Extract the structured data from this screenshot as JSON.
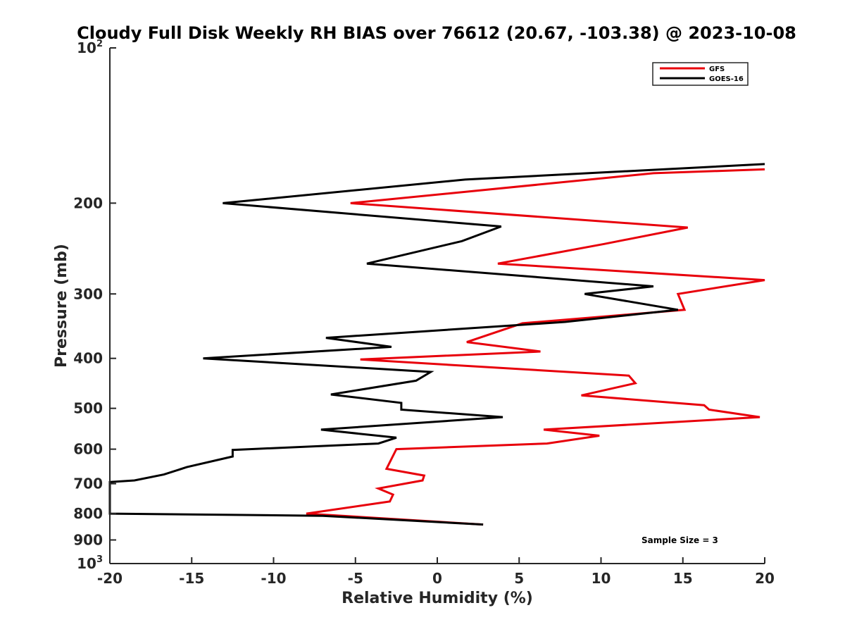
{
  "chart_data": {
    "type": "line",
    "title": "Cloudy Full Disk Weekly RH BIAS over 76612 (20.67, -103.38) @ 2023-10-08",
    "xlabel": "Relative Humidity (%)",
    "ylabel": "Pressure (mb)",
    "xlim": [
      -20,
      20
    ],
    "ylim": [
      100,
      1000
    ],
    "yscale": "log",
    "y_reversed": true,
    "xticks": [
      -20,
      -15,
      -10,
      -5,
      0,
      5,
      10,
      15,
      20
    ],
    "xtick_labels": [
      "-20",
      "-15",
      "-10",
      "-5",
      "0",
      "5",
      "10",
      "15",
      "20"
    ],
    "yticks": [
      {
        "value": 100,
        "base": "10",
        "exp": "2"
      },
      {
        "value": 200,
        "label": "200"
      },
      {
        "value": 300,
        "label": "300"
      },
      {
        "value": 400,
        "label": "400"
      },
      {
        "value": 500,
        "label": "500"
      },
      {
        "value": 600,
        "label": "600"
      },
      {
        "value": 700,
        "label": "700"
      },
      {
        "value": 800,
        "label": "800"
      },
      {
        "value": 900,
        "label": "900"
      },
      {
        "value": 1000,
        "base": "10",
        "exp": "3"
      }
    ],
    "legend_position": "top-right",
    "annotation": "Sample Size = 3",
    "series": [
      {
        "name": "GFS",
        "color": "#e8000b",
        "points": [
          [
            20,
            172
          ],
          [
            13.2,
            175
          ],
          [
            -5.3,
            200
          ],
          [
            15.3,
            223
          ],
          [
            10.2,
            240
          ],
          [
            3.7,
            262
          ],
          [
            20,
            282
          ],
          [
            14.7,
            300
          ],
          [
            15.1,
            322
          ],
          [
            5.2,
            342
          ],
          [
            1.8,
            372
          ],
          [
            6.3,
            388
          ],
          [
            -4.7,
            402
          ],
          [
            11.7,
            432
          ],
          [
            12.1,
            447
          ],
          [
            8.8,
            472
          ],
          [
            16.3,
            493
          ],
          [
            16.6,
            503
          ],
          [
            19.7,
            520
          ],
          [
            6.5,
            550
          ],
          [
            9.9,
            565
          ],
          [
            6.7,
            585
          ],
          [
            -2.5,
            600
          ],
          [
            -3.1,
            655
          ],
          [
            -0.8,
            675
          ],
          [
            -0.9,
            690
          ],
          [
            -3.6,
            715
          ],
          [
            -2.7,
            735
          ],
          [
            -2.9,
            758
          ],
          [
            -8.0,
            800
          ],
          [
            2.8,
            840
          ]
        ]
      },
      {
        "name": "GOES-16",
        "color": "#000000",
        "points": [
          [
            20,
            168
          ],
          [
            1.7,
            180
          ],
          [
            -13.1,
            200
          ],
          [
            3.9,
            222
          ],
          [
            1.5,
            237
          ],
          [
            -4.3,
            262
          ],
          [
            13.2,
            290
          ],
          [
            9.0,
            300
          ],
          [
            14.7,
            322
          ],
          [
            7.8,
            340
          ],
          [
            -6.8,
            365
          ],
          [
            -2.8,
            380
          ],
          [
            -14.3,
            400
          ],
          [
            -0.4,
            425
          ],
          [
            -1.3,
            442
          ],
          [
            -6.5,
            470
          ],
          [
            -2.2,
            488
          ],
          [
            -2.2,
            503
          ],
          [
            4.0,
            520
          ],
          [
            -7.1,
            550
          ],
          [
            -2.5,
            570
          ],
          [
            -3.6,
            585
          ],
          [
            -12.5,
            602
          ],
          [
            -12.5,
            620
          ],
          [
            -15.3,
            650
          ],
          [
            -16.7,
            672
          ],
          [
            -18.5,
            690
          ],
          [
            -20,
            695
          ],
          [
            -20,
            800
          ],
          [
            -7.0,
            808
          ],
          [
            2.8,
            840
          ]
        ]
      }
    ]
  }
}
